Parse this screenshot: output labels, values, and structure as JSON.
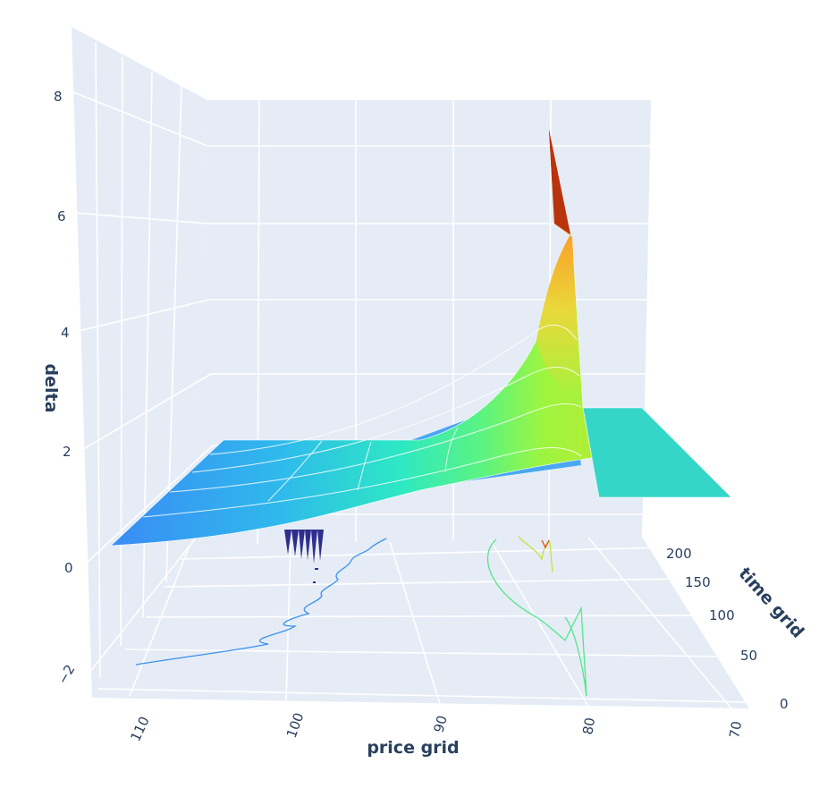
{
  "chart_data": {
    "type": "surface",
    "colorscale": "turbo",
    "axes": {
      "x": {
        "title": "price grid",
        "ticks": [
          "110",
          "100",
          "90",
          "80",
          "70"
        ],
        "range": [
          70,
          114
        ]
      },
      "y": {
        "title": "time grid",
        "ticks": [
          "0",
          "50",
          "100",
          "150",
          "200"
        ],
        "range": [
          0,
          225
        ]
      },
      "z": {
        "title": "delta",
        "ticks": [
          "−2",
          "0",
          "2",
          "4",
          "6",
          "8"
        ],
        "range": [
          -2.5,
          9
        ]
      }
    },
    "grid": true,
    "background": "#e5ecf6",
    "features": {
      "low_price_plateau_delta": 1.0,
      "peak_delta": 7.4,
      "peak_price": 82,
      "peak_time": 0
    }
  }
}
